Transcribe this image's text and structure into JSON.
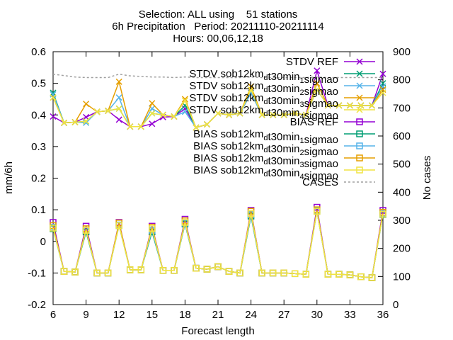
{
  "chart_data": {
    "type": "line",
    "title_lines": [
      "Selection: ALL using    51 stations",
      "6h Precipitation   Period: 20211110-20211114",
      "Hours: 00,06,12,18"
    ],
    "xlabel": "Forecast length",
    "ylabel": "mm/6h",
    "y2label": "No cases",
    "xlim": [
      6,
      36
    ],
    "ylim": [
      -0.2,
      0.6
    ],
    "y2lim": [
      0,
      900
    ],
    "xticks": [
      6,
      9,
      12,
      15,
      18,
      21,
      24,
      27,
      30,
      33,
      36
    ],
    "yticks": [
      -0.2,
      -0.1,
      0,
      0.1,
      0.2,
      0.3,
      0.4,
      0.5,
      0.6
    ],
    "y2ticks": [
      0,
      100,
      200,
      300,
      400,
      500,
      600,
      700,
      800,
      900
    ],
    "grid": false,
    "legend_position": "top-right",
    "x": [
      6,
      7,
      8,
      9,
      10,
      11,
      12,
      13,
      14,
      15,
      16,
      17,
      18,
      19,
      20,
      21,
      22,
      23,
      24,
      25,
      26,
      27,
      28,
      29,
      30,
      31,
      32,
      33,
      34,
      35,
      36
    ],
    "series": [
      {
        "label_parts": [
          [
            "STDV REF",
            ""
          ]
        ],
        "color": "#9400d3",
        "marker": "x",
        "axis": "y",
        "values": [
          0.395,
          0.375,
          0.377,
          0.393,
          0.41,
          0.413,
          0.385,
          0.363,
          0.363,
          0.372,
          0.393,
          0.395,
          0.42,
          0.36,
          0.37,
          0.405,
          0.4,
          0.405,
          0.47,
          0.4,
          0.4,
          0.4,
          0.405,
          0.4,
          0.54,
          0.43,
          0.43,
          0.43,
          0.43,
          0.43,
          0.53
        ]
      },
      {
        "label_parts": [
          [
            "STDV sob12km",
            ""
          ],
          [
            "d",
            "sub"
          ],
          [
            "t30min",
            ""
          ],
          [
            "1",
            "sub"
          ],
          [
            "sigmao",
            ""
          ]
        ],
        "color": "#009e73",
        "marker": "x",
        "axis": "y",
        "values": [
          0.47,
          0.375,
          0.377,
          0.38,
          0.41,
          0.413,
          0.42,
          0.363,
          0.363,
          0.405,
          0.4,
          0.395,
          0.43,
          0.36,
          0.37,
          0.405,
          0.4,
          0.405,
          0.47,
          0.4,
          0.4,
          0.4,
          0.405,
          0.4,
          0.48,
          0.43,
          0.43,
          0.43,
          0.43,
          0.43,
          0.5
        ]
      },
      {
        "label_parts": [
          [
            "STDV sob12km",
            ""
          ],
          [
            "d",
            "sub"
          ],
          [
            "t30min",
            ""
          ],
          [
            "2",
            "sub"
          ],
          [
            "sigmao",
            ""
          ]
        ],
        "color": "#56b4e9",
        "marker": "x",
        "axis": "y",
        "values": [
          0.465,
          0.375,
          0.377,
          0.375,
          0.41,
          0.413,
          0.455,
          0.363,
          0.363,
          0.42,
          0.4,
          0.395,
          0.41,
          0.36,
          0.37,
          0.405,
          0.4,
          0.405,
          0.47,
          0.4,
          0.4,
          0.4,
          0.405,
          0.4,
          0.48,
          0.43,
          0.43,
          0.43,
          0.43,
          0.43,
          0.49
        ]
      },
      {
        "label_parts": [
          [
            "STDV sob12km",
            ""
          ],
          [
            "d",
            "sub"
          ],
          [
            "t30min",
            ""
          ],
          [
            "3",
            "sub"
          ],
          [
            "sigmao",
            ""
          ]
        ],
        "color": "#e69f00",
        "marker": "x",
        "axis": "y",
        "values": [
          0.455,
          0.375,
          0.377,
          0.435,
          0.41,
          0.413,
          0.505,
          0.363,
          0.363,
          0.437,
          0.4,
          0.395,
          0.45,
          0.36,
          0.37,
          0.405,
          0.4,
          0.405,
          0.49,
          0.4,
          0.4,
          0.4,
          0.405,
          0.4,
          0.5,
          0.43,
          0.43,
          0.43,
          0.43,
          0.43,
          0.48
        ]
      },
      {
        "label_parts": [
          [
            "STDV sob12km",
            ""
          ],
          [
            "d",
            "sub"
          ],
          [
            "t30min",
            ""
          ],
          [
            "4",
            "sub"
          ],
          [
            "sigmao",
            ""
          ]
        ],
        "color": "#f0e442",
        "marker": "x",
        "axis": "y",
        "values": [
          0.455,
          0.375,
          0.377,
          0.38,
          0.41,
          0.413,
          0.42,
          0.363,
          0.363,
          0.405,
          0.4,
          0.395,
          0.445,
          0.36,
          0.37,
          0.405,
          0.4,
          0.405,
          0.48,
          0.4,
          0.4,
          0.4,
          0.405,
          0.4,
          0.48,
          0.43,
          0.43,
          0.43,
          0.43,
          0.43,
          0.47
        ]
      },
      {
        "label_parts": [
          [
            "BIAS REF",
            ""
          ]
        ],
        "color": "#9400d3",
        "marker": "square",
        "axis": "y",
        "values": [
          0.06,
          -0.095,
          -0.097,
          0.048,
          -0.1,
          -0.1,
          0.06,
          -0.09,
          -0.09,
          0.048,
          -0.092,
          -0.092,
          0.07,
          -0.085,
          -0.088,
          -0.08,
          -0.095,
          -0.1,
          0.098,
          -0.1,
          -0.1,
          -0.1,
          -0.102,
          -0.104,
          0.108,
          -0.104,
          -0.104,
          -0.106,
          -0.112,
          -0.115,
          0.098
        ]
      },
      {
        "label_parts": [
          [
            "BIAS sob12km",
            ""
          ],
          [
            "d",
            "sub"
          ],
          [
            "t30min",
            ""
          ],
          [
            "1",
            "sub"
          ],
          [
            "sigmao",
            ""
          ]
        ],
        "color": "#009e73",
        "marker": "square",
        "axis": "y",
        "values": [
          0.04,
          -0.095,
          -0.097,
          0.03,
          -0.1,
          -0.1,
          0.05,
          -0.09,
          -0.09,
          0.03,
          -0.092,
          -0.092,
          0.055,
          -0.085,
          -0.088,
          -0.08,
          -0.095,
          -0.1,
          0.08,
          -0.1,
          -0.1,
          -0.1,
          -0.102,
          -0.104,
          0.095,
          -0.104,
          -0.104,
          -0.106,
          -0.112,
          -0.115,
          0.085
        ]
      },
      {
        "label_parts": [
          [
            "BIAS sob12km",
            ""
          ],
          [
            "d",
            "sub"
          ],
          [
            "t30min",
            ""
          ],
          [
            "2",
            "sub"
          ],
          [
            "sigmao",
            ""
          ]
        ],
        "color": "#56b4e9",
        "marker": "square",
        "axis": "y",
        "values": [
          0.045,
          -0.095,
          -0.097,
          0.035,
          -0.1,
          -0.1,
          0.052,
          -0.09,
          -0.09,
          0.035,
          -0.092,
          -0.092,
          0.058,
          -0.085,
          -0.088,
          -0.08,
          -0.095,
          -0.1,
          0.085,
          -0.1,
          -0.1,
          -0.1,
          -0.102,
          -0.104,
          0.098,
          -0.104,
          -0.104,
          -0.106,
          -0.112,
          -0.115,
          0.088
        ]
      },
      {
        "label_parts": [
          [
            "BIAS sob12km",
            ""
          ],
          [
            "d",
            "sub"
          ],
          [
            "t30min",
            ""
          ],
          [
            "3",
            "sub"
          ],
          [
            "sigmao",
            ""
          ]
        ],
        "color": "#e69f00",
        "marker": "square",
        "axis": "y",
        "values": [
          0.05,
          -0.095,
          -0.097,
          0.04,
          -0.1,
          -0.1,
          0.058,
          -0.09,
          -0.09,
          0.045,
          -0.092,
          -0.092,
          0.065,
          -0.085,
          -0.088,
          -0.08,
          -0.095,
          -0.1,
          0.095,
          -0.1,
          -0.1,
          -0.1,
          -0.102,
          -0.104,
          0.1,
          -0.104,
          -0.104,
          -0.106,
          -0.112,
          -0.115,
          0.092
        ]
      },
      {
        "label_parts": [
          [
            "BIAS sob12km",
            ""
          ],
          [
            "d",
            "sub"
          ],
          [
            "t30min",
            ""
          ],
          [
            "4",
            "sub"
          ],
          [
            "sigmao",
            ""
          ]
        ],
        "color": "#f0e442",
        "marker": "square",
        "axis": "y",
        "values": [
          0.042,
          -0.095,
          -0.097,
          0.035,
          -0.1,
          -0.1,
          0.05,
          -0.09,
          -0.09,
          0.04,
          -0.092,
          -0.092,
          0.06,
          -0.085,
          -0.088,
          -0.08,
          -0.095,
          -0.1,
          0.088,
          -0.1,
          -0.1,
          -0.1,
          -0.102,
          -0.104,
          0.095,
          -0.104,
          -0.104,
          -0.106,
          -0.112,
          -0.115,
          0.086
        ]
      },
      {
        "label_parts": [
          [
            "CASES",
            ""
          ]
        ],
        "color": "#a0a0a0",
        "marker": "none",
        "dash": true,
        "axis": "y2",
        "values": [
          820,
          815,
          810,
          808,
          808,
          808,
          820,
          814,
          812,
          810,
          810,
          808,
          810,
          808,
          808,
          808,
          808,
          808,
          810,
          808,
          808,
          808,
          808,
          808,
          810,
          808,
          808,
          808,
          808,
          808,
          808
        ]
      }
    ]
  }
}
